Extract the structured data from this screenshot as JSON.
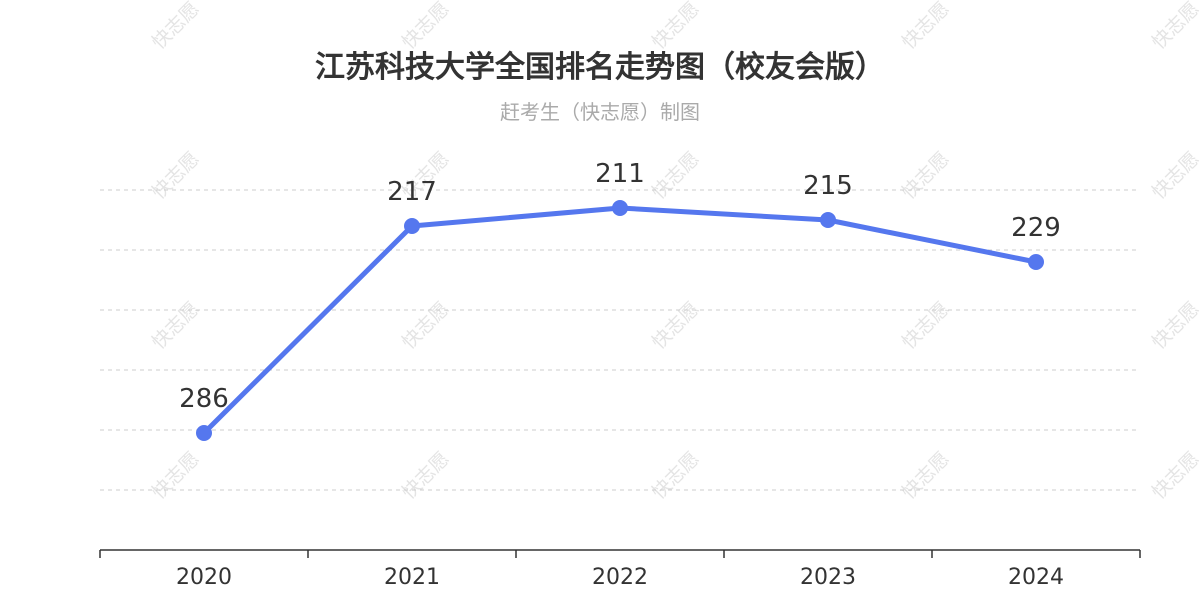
{
  "title": "江苏科技大学全国排名走势图（校友会版）",
  "subtitle": "赶考生（快志愿）制图",
  "watermark": "快志愿",
  "colors": {
    "line": "#5577ee",
    "grid": "#cccccc",
    "axis": "#333333"
  },
  "chart_data": {
    "type": "line",
    "x": [
      "2020",
      "2021",
      "2022",
      "2023",
      "2024"
    ],
    "series": [
      {
        "values": [
          286,
          217,
          211,
          215,
          229
        ]
      }
    ],
    "y_inverted": true,
    "ylim": [
      205,
      305
    ],
    "grid": true,
    "legend": "none"
  }
}
